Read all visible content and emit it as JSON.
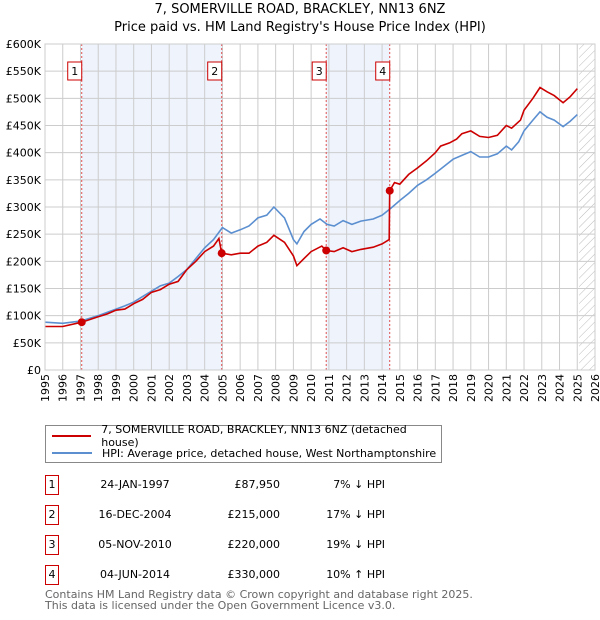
{
  "title": "7, SOMERVILLE ROAD, BRACKLEY, NN13 6NZ",
  "subtitle": "Price paid vs. HM Land Registry's House Price Index (HPI)",
  "colors": {
    "price": "#cc0000",
    "hpi": "#5b8fd0",
    "shade": "#eef3fc"
  },
  "chart_data": {
    "type": "line",
    "title": "7, SOMERVILLE ROAD, BRACKLEY, NN13 6NZ — Price paid vs. HM Land Registry's House Price Index (HPI)",
    "xlim": [
      1995,
      2026
    ],
    "ylim": [
      0,
      600000
    ],
    "x_ticks": [
      "1995",
      "1996",
      "1997",
      "1998",
      "1999",
      "2000",
      "2001",
      "2002",
      "2003",
      "2004",
      "2005",
      "2006",
      "2007",
      "2008",
      "2009",
      "2010",
      "2011",
      "2012",
      "2013",
      "2014",
      "2015",
      "2016",
      "2017",
      "2018",
      "2019",
      "2020",
      "2021",
      "2022",
      "2023",
      "2024",
      "2025",
      "2026"
    ],
    "y_ticks": [
      {
        "v": 0,
        "l": "£0"
      },
      {
        "v": 50000,
        "l": "£50K"
      },
      {
        "v": 100000,
        "l": "£100K"
      },
      {
        "v": 150000,
        "l": "£150K"
      },
      {
        "v": 200000,
        "l": "£200K"
      },
      {
        "v": 250000,
        "l": "£250K"
      },
      {
        "v": 300000,
        "l": "£300K"
      },
      {
        "v": 350000,
        "l": "£350K"
      },
      {
        "v": 400000,
        "l": "£400K"
      },
      {
        "v": 450000,
        "l": "£450K"
      },
      {
        "v": 500000,
        "l": "£500K"
      },
      {
        "v": 550000,
        "l": "£550K"
      },
      {
        "v": 600000,
        "l": "£600K"
      }
    ],
    "grid": true,
    "future_hatch_from": 2025.1,
    "shaded_ranges": [
      [
        1997.07,
        2004.96
      ],
      [
        2010.85,
        2014.43
      ]
    ],
    "series": [
      {
        "name": "7, SOMERVILLE ROAD, BRACKLEY, NN13 6NZ (detached house)",
        "color": "#cc0000",
        "x": [
          1995,
          1996,
          1997.07,
          1998,
          1998.5,
          1999,
          1999.5,
          2000,
          2000.5,
          2001,
          2001.5,
          2002,
          2002.5,
          2003,
          2003.5,
          2004,
          2004.5,
          2004.8,
          2004.96,
          2005.5,
          2006,
          2006.5,
          2007,
          2007.5,
          2007.9,
          2008.5,
          2009.0,
          2009.2,
          2009.6,
          2010,
          2010.6,
          2010.85,
          2011.3,
          2011.8,
          2012.3,
          2012.8,
          2013.5,
          2014,
          2014.4,
          2014.43,
          2014.7,
          2015,
          2015.5,
          2016,
          2016.5,
          2017,
          2017.3,
          2017.8,
          2018.2,
          2018.5,
          2019,
          2019.5,
          2020,
          2020.5,
          2021,
          2021.3,
          2021.8,
          2022,
          2022.5,
          2022.9,
          2023.3,
          2023.7,
          2024.2,
          2024.6,
          2025.0
        ],
        "y": [
          80000,
          80000,
          87950,
          98000,
          103000,
          110000,
          112000,
          122000,
          130000,
          143000,
          148000,
          158000,
          163000,
          185000,
          200000,
          218000,
          228000,
          242000,
          215000,
          212000,
          215000,
          215000,
          228000,
          235000,
          248000,
          235000,
          210000,
          192000,
          205000,
          218000,
          228000,
          220000,
          218000,
          225000,
          218000,
          222000,
          226000,
          232000,
          240000,
          330000,
          345000,
          342000,
          360000,
          372000,
          385000,
          400000,
          412000,
          418000,
          425000,
          435000,
          440000,
          430000,
          428000,
          432000,
          450000,
          445000,
          460000,
          478000,
          500000,
          520000,
          512000,
          505000,
          492000,
          503000,
          518000
        ]
      },
      {
        "name": "HPI: Average price, detached house, West Northamptonshire",
        "color": "#5b8fd0",
        "x": [
          1995,
          1996,
          1997,
          1997.5,
          1998,
          1998.5,
          1999,
          1999.5,
          2000,
          2000.5,
          2001,
          2001.5,
          2002,
          2002.5,
          2003,
          2003.5,
          2004,
          2004.5,
          2005,
          2005.5,
          2006,
          2006.5,
          2007,
          2007.5,
          2007.9,
          2008.5,
          2009.0,
          2009.2,
          2009.6,
          2010,
          2010.5,
          2010.9,
          2011.3,
          2011.8,
          2012.3,
          2012.8,
          2013.5,
          2014,
          2014.5,
          2015,
          2015.5,
          2016,
          2016.5,
          2017,
          2017.5,
          2018,
          2018.5,
          2019,
          2019.5,
          2020,
          2020.5,
          2021,
          2021.3,
          2021.7,
          2022,
          2022.5,
          2022.9,
          2023.3,
          2023.7,
          2024.2,
          2024.6,
          2025.0
        ],
        "y": [
          88000,
          86000,
          90000,
          95000,
          100000,
          106000,
          112000,
          118000,
          125000,
          135000,
          145000,
          155000,
          160000,
          172000,
          185000,
          205000,
          225000,
          240000,
          262000,
          252000,
          258000,
          265000,
          280000,
          285000,
          300000,
          280000,
          240000,
          232000,
          255000,
          268000,
          278000,
          268000,
          265000,
          275000,
          268000,
          274000,
          278000,
          285000,
          298000,
          312000,
          325000,
          340000,
          350000,
          362000,
          375000,
          388000,
          395000,
          402000,
          392000,
          392000,
          398000,
          412000,
          405000,
          420000,
          440000,
          460000,
          475000,
          465000,
          460000,
          448000,
          458000,
          470000
        ]
      }
    ],
    "sales": [
      {
        "n": "1",
        "x": 1997.07,
        "y": 87950
      },
      {
        "n": "2",
        "x": 2004.96,
        "y": 215000
      },
      {
        "n": "3",
        "x": 2010.85,
        "y": 220000
      },
      {
        "n": "4",
        "x": 2014.43,
        "y": 330000
      }
    ]
  },
  "legend": {
    "price": "7, SOMERVILLE ROAD, BRACKLEY, NN13 6NZ (detached house)",
    "hpi": "HPI: Average price, detached house, West Northamptonshire"
  },
  "transactions": [
    {
      "n": "1",
      "date": "24-JAN-1997",
      "price": "£87,950",
      "hpi": "7% ↓ HPI"
    },
    {
      "n": "2",
      "date": "16-DEC-2004",
      "price": "£215,000",
      "hpi": "17% ↓ HPI"
    },
    {
      "n": "3",
      "date": "05-NOV-2010",
      "price": "£220,000",
      "hpi": "19% ↓ HPI"
    },
    {
      "n": "4",
      "date": "04-JUN-2014",
      "price": "£330,000",
      "hpi": "10% ↑ HPI"
    }
  ],
  "footer": {
    "line1": "Contains HM Land Registry data © Crown copyright and database right 2025.",
    "line2": "This data is licensed under the Open Government Licence v3.0."
  }
}
